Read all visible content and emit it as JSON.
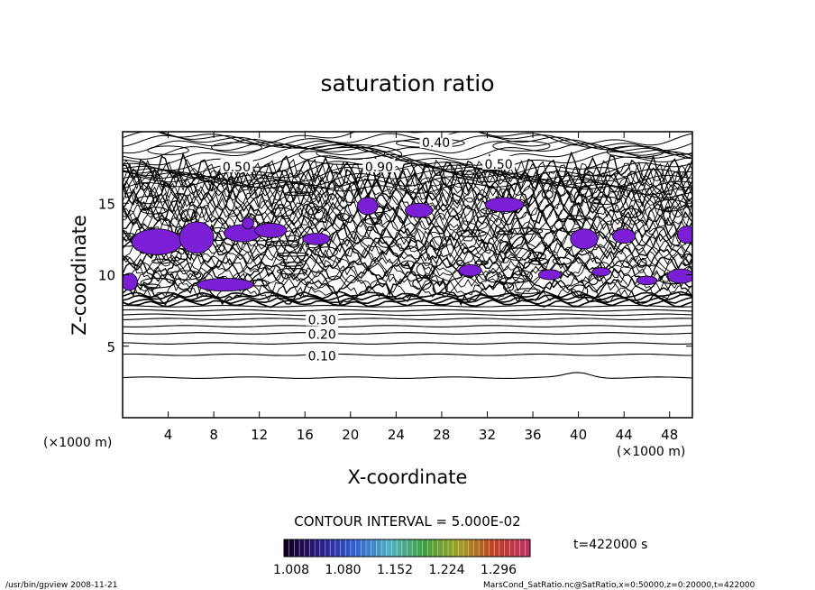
{
  "chart_data": {
    "type": "contour",
    "title": "saturation ratio",
    "xlabel": "X-coordinate",
    "ylabel": "Z-coordinate",
    "x_unit": "(×1000 m)",
    "y_unit": "(×1000 m)",
    "xlim": [
      0,
      50
    ],
    "ylim": [
      0,
      20
    ],
    "x_ticks": [
      4,
      8,
      12,
      16,
      20,
      24,
      28,
      32,
      36,
      40,
      44,
      48
    ],
    "y_ticks": [
      5,
      10,
      15
    ],
    "contour_interval_text": "CONTOUR INTERVAL = 5.000E-02",
    "contour_labels": [
      {
        "text": "0.40",
        "x": 27.5,
        "y": 19.3
      },
      {
        "text": "0.50",
        "x": 10.0,
        "y": 17.6
      },
      {
        "text": "0.90",
        "x": 22.5,
        "y": 17.6
      },
      {
        "text": "0.50",
        "x": 33.0,
        "y": 17.8
      },
      {
        "text": "0.10",
        "x": 17.5,
        "y": 4.4
      },
      {
        "text": "0.20",
        "x": 17.5,
        "y": 5.9
      },
      {
        "text": "0.30",
        "x": 17.5,
        "y": 6.9
      }
    ],
    "color_scale": {
      "tick_labels": [
        "1.008",
        "1.080",
        "1.152",
        "1.224",
        "1.296"
      ],
      "colors": [
        "#100020",
        "#2a1a8a",
        "#3060d0",
        "#50b0c0",
        "#40a040",
        "#a0a020",
        "#c04020",
        "#c03060"
      ]
    },
    "time_label": "t=422000 s"
  },
  "footer": {
    "left": "/usr/bin/gpview   2008-11-21",
    "right": "MarsCond_SatRatio.nc@SatRatio,x=0:50000,z=0:20000,t=422000"
  }
}
